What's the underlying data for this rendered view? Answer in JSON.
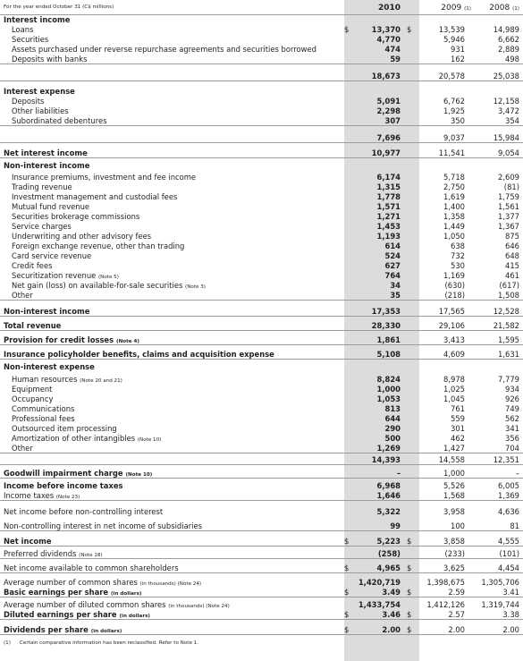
{
  "header": {
    "caption": "For the year ended October 31 (C$ millions)",
    "year_2010": "2010",
    "year_2009": "2009",
    "year_2009_note": "(1)",
    "year_2008": "2008",
    "year_2008_note": "(1)"
  },
  "rows": [
    {
      "t": 17,
      "h": 11,
      "label": "Interest income",
      "style": "head"
    },
    {
      "t": 28,
      "h": 11,
      "label": "Loans",
      "indent": 1,
      "dollar2010": "$",
      "dollar2009": "$",
      "v2010": "13,370",
      "v2009": "13,539",
      "v2008": "14,989"
    },
    {
      "t": 39,
      "h": 11,
      "label": "Securities",
      "indent": 1,
      "v2010": "4,770",
      "v2009": "5,946",
      "v2008": "6,662"
    },
    {
      "t": 50,
      "h": 11,
      "label": "Assets purchased under reverse repurchase agreements and securities borrowed",
      "indent": 1,
      "v2010": "474",
      "v2009": "931",
      "v2008": "2,889"
    },
    {
      "t": 61,
      "h": 11,
      "label": "Deposits with banks",
      "indent": 1,
      "v2010": "59",
      "v2009": "162",
      "v2008": "498",
      "line": true
    },
    {
      "t": 76,
      "h": 15,
      "label": "",
      "v2010": "18,673",
      "v2009": "20,578",
      "v2008": "25,038",
      "line": true
    },
    {
      "t": 97,
      "h": 11,
      "label": "Interest expense",
      "style": "head"
    },
    {
      "t": 108,
      "h": 11,
      "label": "Deposits",
      "indent": 1,
      "v2010": "5,091",
      "v2009": "6,762",
      "v2008": "12,158"
    },
    {
      "t": 119,
      "h": 11,
      "label": "Other liabilities",
      "indent": 1,
      "v2010": "2,298",
      "v2009": "1,925",
      "v2008": "3,472"
    },
    {
      "t": 130,
      "h": 11,
      "label": "Subordinated debentures",
      "indent": 1,
      "v2010": "307",
      "v2009": "350",
      "v2008": "354",
      "line": true
    },
    {
      "t": 145,
      "h": 15,
      "label": "",
      "v2010": "7,696",
      "v2009": "9,037",
      "v2008": "15,984",
      "line": true
    },
    {
      "t": 162,
      "h": 15,
      "label": "Net interest income",
      "style": "bold",
      "v2010": "10,977",
      "v2009": "11,541",
      "v2008": "9,054",
      "line": true
    },
    {
      "t": 180,
      "h": 11,
      "label": "Non-interest income",
      "style": "head"
    },
    {
      "t": 193,
      "h": 11,
      "label": "Insurance premiums, investment and fee income",
      "indent": 1,
      "v2010": "6,174",
      "v2009": "5,718",
      "v2008": "2,609"
    },
    {
      "t": 204,
      "h": 11,
      "label": "Trading revenue",
      "indent": 1,
      "v2010": "1,315",
      "v2009": "2,750",
      "v2008": "(81)"
    },
    {
      "t": 215,
      "h": 11,
      "label": "Investment management and custodial fees",
      "indent": 1,
      "v2010": "1,778",
      "v2009": "1,619",
      "v2008": "1,759"
    },
    {
      "t": 226,
      "h": 11,
      "label": "Mutual fund revenue",
      "indent": 1,
      "v2010": "1,571",
      "v2009": "1,400",
      "v2008": "1,561"
    },
    {
      "t": 237,
      "h": 11,
      "label": "Securities brokerage commissions",
      "indent": 1,
      "v2010": "1,271",
      "v2009": "1,358",
      "v2008": "1,377"
    },
    {
      "t": 248,
      "h": 11,
      "label": "Service charges",
      "indent": 1,
      "v2010": "1,453",
      "v2009": "1,449",
      "v2008": "1,367"
    },
    {
      "t": 259,
      "h": 11,
      "label": "Underwriting and other advisory fees",
      "indent": 1,
      "v2010": "1,193",
      "v2009": "1,050",
      "v2008": "875"
    },
    {
      "t": 270,
      "h": 11,
      "label": "Foreign exchange revenue, other than trading",
      "indent": 1,
      "v2010": "614",
      "v2009": "638",
      "v2008": "646"
    },
    {
      "t": 281,
      "h": 11,
      "label": "Card service revenue",
      "indent": 1,
      "v2010": "524",
      "v2009": "732",
      "v2008": "648"
    },
    {
      "t": 292,
      "h": 11,
      "label": "Credit fees",
      "indent": 1,
      "v2010": "627",
      "v2009": "530",
      "v2008": "415"
    },
    {
      "t": 303,
      "h": 11,
      "label": "Securitization revenue",
      "note": "(Note 5)",
      "indent": 1,
      "v2010": "764",
      "v2009": "1,169",
      "v2008": "461"
    },
    {
      "t": 314,
      "h": 11,
      "label": "Net gain (loss) on available-for-sale securities",
      "note": "(Note 3)",
      "indent": 1,
      "v2010": "34",
      "v2009": "(630)",
      "v2008": "(617)"
    },
    {
      "t": 325,
      "h": 11,
      "label": "Other",
      "indent": 1,
      "v2010": "35",
      "v2009": "(218)",
      "v2008": "1,508",
      "line": true
    },
    {
      "t": 339,
      "h": 15,
      "label": "Non-interest income",
      "style": "bold",
      "v2010": "17,353",
      "v2009": "17,565",
      "v2008": "12,528",
      "line": true
    },
    {
      "t": 355,
      "h": 15,
      "label": "Total revenue",
      "style": "bold",
      "v2010": "28,330",
      "v2009": "29,106",
      "v2008": "21,582",
      "line": true
    },
    {
      "t": 371,
      "h": 15,
      "label": "Provision for credit losses",
      "note": "(Note 4)",
      "style": "bold",
      "v2010": "1,861",
      "v2009": "3,413",
      "v2008": "1,595",
      "line": true
    },
    {
      "t": 387,
      "h": 15,
      "label": "Insurance policyholder benefits, claims and acquisition expense",
      "style": "bold",
      "v2010": "5,108",
      "v2009": "4,609",
      "v2008": "1,631",
      "line": true
    },
    {
      "t": 405,
      "h": 11,
      "label": "Non-interest expense",
      "style": "head"
    },
    {
      "t": 419,
      "h": 11,
      "label": "Human resources",
      "note": "(Note 20 and 21)",
      "indent": 1,
      "v2010": "8,824",
      "v2009": "8,978",
      "v2008": "7,779"
    },
    {
      "t": 430,
      "h": 11,
      "label": "Equipment",
      "indent": 1,
      "v2010": "1,000",
      "v2009": "1,025",
      "v2008": "934"
    },
    {
      "t": 441,
      "h": 11,
      "label": "Occupancy",
      "indent": 1,
      "v2010": "1,053",
      "v2009": "1,045",
      "v2008": "926"
    },
    {
      "t": 452,
      "h": 11,
      "label": "Communications",
      "indent": 1,
      "v2010": "813",
      "v2009": "761",
      "v2008": "749"
    },
    {
      "t": 463,
      "h": 11,
      "label": "Professional fees",
      "indent": 1,
      "v2010": "644",
      "v2009": "559",
      "v2008": "562"
    },
    {
      "t": 474,
      "h": 11,
      "label": "Outsourced item processing",
      "indent": 1,
      "v2010": "290",
      "v2009": "301",
      "v2008": "341"
    },
    {
      "t": 485,
      "h": 11,
      "label": "Amortization of other intangibles",
      "note": "(Note 10)",
      "indent": 1,
      "v2010": "500",
      "v2009": "462",
      "v2008": "356"
    },
    {
      "t": 496,
      "h": 11,
      "label": "Other",
      "indent": 1,
      "v2010": "1,269",
      "v2009": "1,427",
      "v2008": "704",
      "line": true
    },
    {
      "t": 505,
      "h": 15,
      "label": "",
      "v2010": "14,393",
      "v2009": "14,558",
      "v2008": "12,351",
      "line": true
    },
    {
      "t": 520,
      "h": 15,
      "label": "Goodwill impairment charge",
      "note": "(Note 10)",
      "style": "bold",
      "v2010": "–",
      "v2009": "1,000",
      "v2008": "–",
      "line": true
    },
    {
      "t": 538,
      "h": 11,
      "label": "Income before income taxes",
      "style": "bold",
      "v2010": "6,968",
      "v2009": "5,526",
      "v2008": "6,005"
    },
    {
      "t": 549,
      "h": 11,
      "label": "Income taxes",
      "note": "(Note 23)",
      "indent": 0,
      "v2010": "1,646",
      "v2009": "1,568",
      "v2008": "1,369",
      "line": true
    },
    {
      "t": 567,
      "h": 11,
      "label": "Net income before non-controlling interest",
      "v2010": "5,322",
      "v2009": "3,958",
      "v2008": "4,636"
    },
    {
      "t": 583,
      "h": 11,
      "label": "Non-controlling interest in net income of subsidiaries",
      "v2010": "99",
      "v2009": "100",
      "v2008": "81",
      "line": true
    },
    {
      "t": 597,
      "h": 14,
      "label": "Net income",
      "style": "bold",
      "dollar2010": "$",
      "dollar2009": "$",
      "v2010": "5,223",
      "v2009": "3,858",
      "v2008": "4,555",
      "line": true
    },
    {
      "t": 614,
      "h": 11,
      "label": "Preferred dividends",
      "note": "(Note 18)",
      "v2010": "(258)",
      "v2009": "(233)",
      "v2008": "(101)",
      "line": true
    },
    {
      "t": 628,
      "h": 13,
      "label": "Net income available to common shareholders",
      "dollar2010": "$",
      "dollar2009": "$",
      "v2010": "4,965",
      "v2009": "3,625",
      "v2008": "4,454",
      "line": true
    },
    {
      "t": 646,
      "h": 11,
      "label": "Average number of common shares",
      "note": "(in thousands) (Note 24)",
      "v2010": "1,420,719",
      "v2009": "1,398,675",
      "v2008": "1,305,706"
    },
    {
      "t": 657,
      "h": 11,
      "label": "Basic earnings per share",
      "unit": "(in dollars)",
      "style": "bold",
      "dollar2010": "$",
      "dollar2009": "$",
      "v2010": "3.49",
      "v2009": "2.59",
      "v2008": "3.41",
      "line": true
    },
    {
      "t": 671,
      "h": 11,
      "label": "Average number of diluted common shares",
      "note": "(in thousands) (Note 24)",
      "v2010": "1,433,754",
      "v2009": "1,412,126",
      "v2008": "1,319,744"
    },
    {
      "t": 682,
      "h": 11,
      "label": "Diluted earnings per share",
      "unit": "(in dollars)",
      "style": "bold",
      "dollar2010": "$",
      "dollar2009": "$",
      "v2010": "3.46",
      "v2009": "2.57",
      "v2008": "3.38",
      "line": true
    },
    {
      "t": 698,
      "h": 12,
      "label": "Dividends per share",
      "unit": "(in dollars)",
      "style": "bold",
      "dollar2010": "$",
      "dollar2009": "$",
      "v2010": "2.00",
      "v2009": "2.00",
      "v2008": "2.00",
      "line": true
    }
  ],
  "footnote": {
    "mark": "(1)",
    "text": "Certain comparative information has been reclassified. Refer to Note 1."
  }
}
